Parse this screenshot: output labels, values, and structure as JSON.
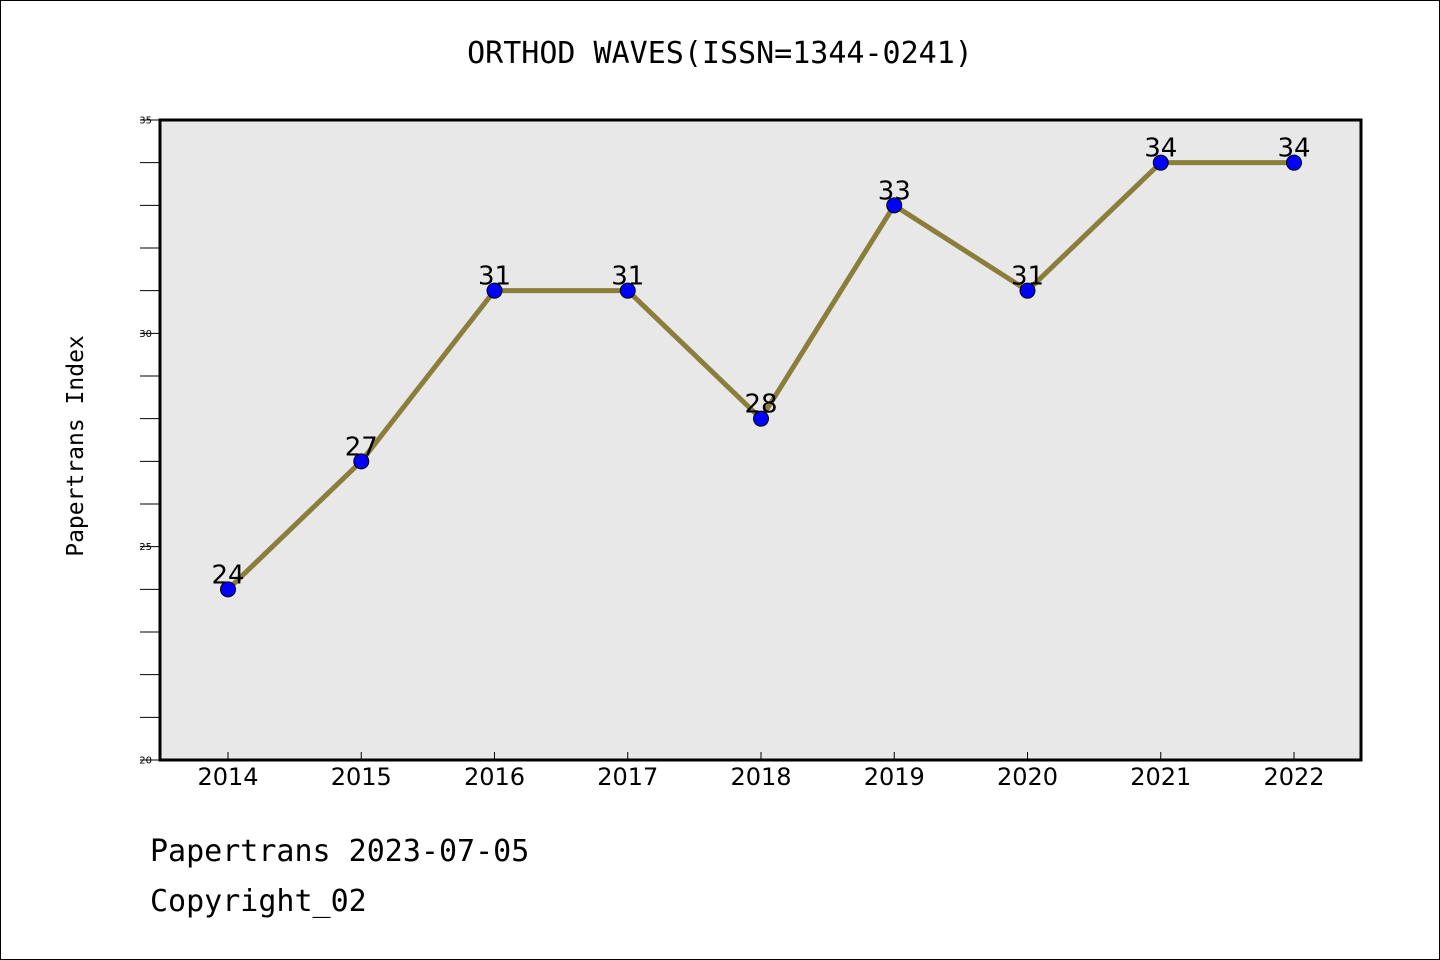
{
  "chart_data": {
    "type": "line",
    "title": "ORTHOD WAVES(ISSN=1344-0241)",
    "ylabel": "Papertrans Index",
    "xlabel": "",
    "categories": [
      "2014",
      "2015",
      "2016",
      "2017",
      "2018",
      "2019",
      "2020",
      "2021",
      "2022"
    ],
    "series": [
      {
        "values": [
          24,
          27,
          31,
          31,
          28,
          33,
          31,
          34,
          34
        ]
      }
    ],
    "ylim": [
      20,
      35
    ],
    "y_ticks": [
      20,
      25,
      30,
      35
    ],
    "y_minor_step": 1,
    "grid": false,
    "legend": "none",
    "colors": {
      "line": "#8B7D3A",
      "marker": "#0000FF",
      "plot_background": "#E8E8E8"
    }
  },
  "footer": {
    "date_line": "Papertrans 2023-07-05",
    "copyright": "Copyright_02"
  }
}
